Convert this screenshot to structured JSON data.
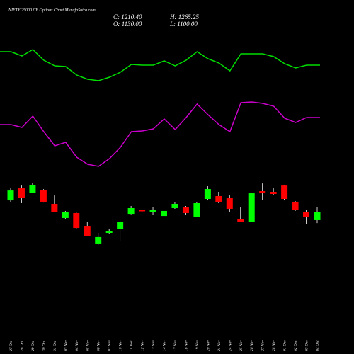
{
  "chart_data": {
    "type": "candlestick",
    "title": "NIFTY 25000 CE Options Chart MunafaSutra.com",
    "header_labels": [
      "C: 1210.40",
      "H: 1265.25",
      "O: 1130.00",
      "L: 1100.00"
    ],
    "categories": [
      "27 Oct",
      "28 Oct",
      "29 Oct",
      "30 Oct",
      "31 Oct",
      "03 Nov",
      "04 Nov",
      "05 Nov",
      "06 Nov",
      "07 Nov",
      "10 Nov",
      "11 Nov",
      "12 Nov",
      "13 Nov",
      "14 Nov",
      "17 Nov",
      "18 Nov",
      "19 Nov",
      "20 Nov",
      "21 Nov",
      "24 Nov",
      "25 Nov",
      "26 Nov",
      "27 Nov",
      "28 Nov",
      "01 Dec",
      "02 Dec",
      "03 Dec",
      "04 Dec"
    ],
    "open": [
      1334,
      1458,
      1414,
      1444,
      1298,
      1152,
      1203,
      1071,
      889,
      998,
      1042,
      1195,
      1232,
      1217,
      1173,
      1254,
      1261,
      1166,
      1349,
      1378,
      1356,
      1137,
      1115,
      1429,
      1422,
      1487,
      1320,
      1217,
      1130
    ],
    "high": [
      1466,
      1487,
      1517,
      1450,
      1385,
      1225,
      1210,
      1115,
      998,
      1035,
      1122,
      1276,
      1341,
      1261,
      1239,
      1312,
      1276,
      1320,
      1480,
      1422,
      1385,
      1261,
      1414,
      1509,
      1466,
      1495,
      1327,
      1232,
      1265.25
    ],
    "low": [
      1320,
      1305,
      1407,
      1312,
      1210,
      1144,
      1042,
      962,
      874,
      984,
      918,
      1190,
      1181,
      1188,
      1108,
      1247,
      1188,
      1159,
      1334,
      1305,
      1210,
      1108,
      1108,
      1341,
      1393,
      1334,
      1225,
      1086,
      1100
    ],
    "close": [
      1436,
      1363,
      1495,
      1320,
      1217,
      1210,
      1049,
      969,
      955,
      1020,
      1108,
      1254,
      1225,
      1239,
      1225,
      1298,
      1203,
      1305,
      1451,
      1320,
      1247,
      1115,
      1407,
      1407,
      1400,
      1349,
      1239,
      1166,
      1210.4
    ],
    "up_color": "#00ff00",
    "down_color": "#ff0000",
    "lines": [
      {
        "color": "#00dd00",
        "values": [
          427,
          427,
          421,
          430,
          415,
          407,
          406,
          394,
          388,
          386,
          391,
          398,
          409,
          408,
          408,
          414,
          407,
          415,
          427,
          417,
          411,
          400,
          424,
          424,
          424,
          420,
          410,
          404,
          408
        ]
      },
      {
        "color": "#cc00cc",
        "values": [
          324,
          324,
          320,
          336,
          314,
          294,
          299,
          278,
          268,
          265,
          276,
          292,
          314,
          315,
          318,
          332,
          317,
          334,
          353,
          338,
          324,
          314,
          355,
          356,
          354,
          350,
          333,
          327,
          334
        ]
      }
    ]
  }
}
